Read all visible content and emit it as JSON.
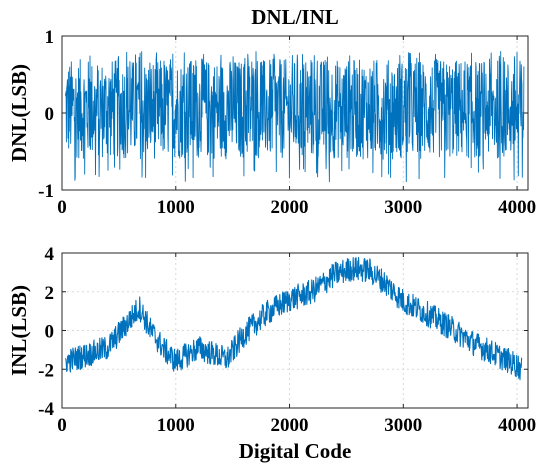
{
  "chart_data": [
    {
      "type": "line",
      "title": "DNL/INL",
      "xlabel": "",
      "ylabel": "DNL(LSB)",
      "xlim": [
        0,
        4096
      ],
      "ylim": [
        -1,
        1
      ],
      "xticks": [
        0,
        1000,
        2000,
        3000,
        4000
      ],
      "xtick_labels": [
        "0",
        "1000",
        "2000",
        "3000",
        "4000"
      ],
      "yticks": [
        -1,
        0,
        1
      ],
      "ytick_labels": [
        "-1",
        "0",
        "1"
      ],
      "grid": true,
      "color": "#0072BD",
      "series": [
        {
          "x_range": [
            30,
            4060
          ],
          "typical_range": [
            -0.6,
            0.7
          ],
          "extreme_range": [
            -0.9,
            0.8
          ],
          "mean": 0
        }
      ]
    },
    {
      "type": "line",
      "title": "",
      "xlabel": "Digital Code",
      "ylabel": "INL(LSB)",
      "xlim": [
        0,
        4096
      ],
      "ylim": [
        -4,
        4
      ],
      "xticks": [
        0,
        1000,
        2000,
        3000,
        4000
      ],
      "xtick_labels": [
        "0",
        "1000",
        "2000",
        "3000",
        "4000"
      ],
      "yticks": [
        -4,
        -2,
        0,
        2,
        4
      ],
      "ytick_labels": [
        "-4",
        "-2",
        "0",
        "2",
        "4"
      ],
      "grid": true,
      "color": "#0072BD",
      "series": [
        {
          "x": [
            30,
            200,
            400,
            550,
            680,
            780,
            900,
            1000,
            1200,
            1450,
            1600,
            1800,
            2000,
            2200,
            2400,
            2550,
            2700,
            2850,
            3000,
            3200,
            3400,
            3600,
            3800,
            4000,
            4040
          ],
          "y": [
            -1.6,
            -1.3,
            -0.9,
            0.2,
            1.2,
            0.0,
            -1.0,
            -1.6,
            -0.9,
            -1.5,
            -0.2,
            0.9,
            1.6,
            2.0,
            2.9,
            3.2,
            3.1,
            2.4,
            1.5,
            0.9,
            0.2,
            -0.6,
            -1.2,
            -1.8,
            -2.0
          ],
          "noise_amplitude": 0.65
        }
      ]
    }
  ]
}
